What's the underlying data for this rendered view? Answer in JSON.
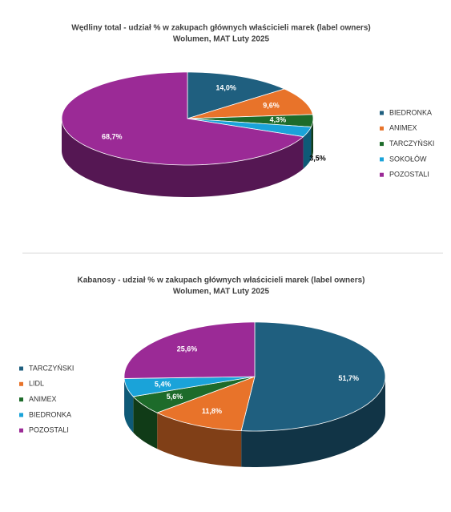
{
  "chart_data": [
    {
      "type": "pie3d",
      "title": "Wędliny total - udział % w zakupach głównych właścicieli marek (label owners)",
      "subtitle": "Wolumen, MAT Luty 2025",
      "categories": [
        "BIEDRONKA",
        "ANIMEX",
        "TARCZYŃSKI",
        "SOKOŁÓW",
        "POZOSTALI"
      ],
      "values": [
        14.0,
        9.6,
        4.3,
        3.5,
        68.7
      ],
      "value_labels": [
        "14,0%",
        "9,6%",
        "4,3%",
        "3,5%",
        "68,7%"
      ],
      "colors": [
        "#1f5f7f",
        "#e8732a",
        "#1d6b2a",
        "#1aa3d9",
        "#9b2a96"
      ],
      "legend": "right"
    },
    {
      "type": "pie3d",
      "title": "Kabanosy - udział % w zakupach głównych właścicieli marek (label owners)",
      "subtitle": "Wolumen, MAT Luty 2025",
      "categories": [
        "TARCZYŃSKI",
        "LIDL",
        "ANIMEX",
        "BIEDRONKA",
        "POZOSTALI"
      ],
      "values": [
        51.7,
        11.8,
        5.6,
        5.4,
        25.6
      ],
      "value_labels": [
        "51,7%",
        "11,8%",
        "5,6%",
        "5,4%",
        "25,6%"
      ],
      "colors": [
        "#1f5f7f",
        "#e8732a",
        "#1d6b2a",
        "#1aa3d9",
        "#9b2a96"
      ],
      "legend": "left"
    }
  ]
}
